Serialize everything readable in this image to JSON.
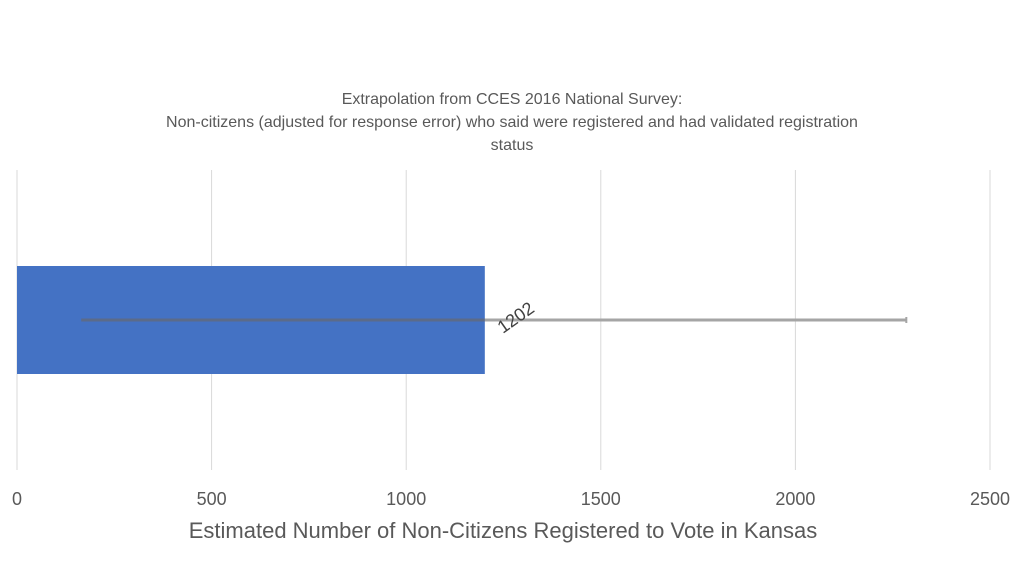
{
  "chart_data": {
    "type": "bar",
    "orientation": "horizontal",
    "title_lines": [
      "Extrapolation from CCES 2016 National Survey:",
      "Non-citizens (adjusted for response error) who said were registered and had validated registration",
      "status"
    ],
    "xlabel": "Estimated Number of Non-Citizens Registered to Vote in Kansas",
    "ylabel": "",
    "xlim": [
      0,
      2500
    ],
    "xticks": [
      "0",
      "500",
      "1000",
      "1500",
      "2000",
      "2500"
    ],
    "grid": "vertical",
    "legend": "none",
    "categories": [
      ""
    ],
    "values": [
      1202
    ],
    "data_labels": [
      "1202"
    ],
    "error_bar": {
      "low": 165,
      "high": 2285
    },
    "colors": {
      "bar": "#4472C4",
      "error_bar": "#A5A5A5",
      "error_bar_inner": "#5B6B8A",
      "grid": "#D9D9D9",
      "text": "#595959"
    }
  }
}
